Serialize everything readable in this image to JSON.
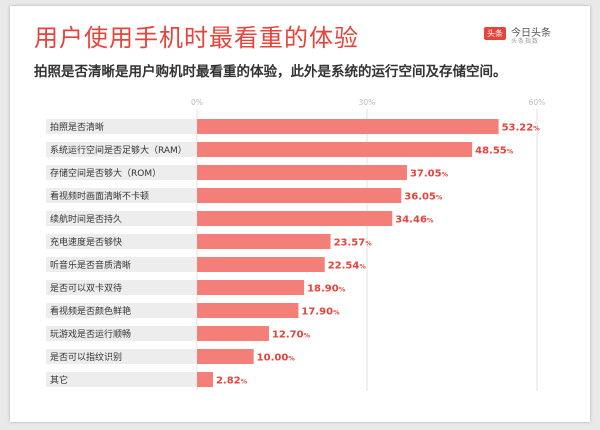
{
  "header": {
    "title": "用户使用手机时最看重的体验",
    "subtitle": "拍照是否清晰是用户购机时最看重的体验，此外是系统的运行空间及存储空间。"
  },
  "logo": {
    "badge": "头条",
    "name": "今日头条",
    "sub": "头条指数"
  },
  "colors": {
    "accent": "#e8433a",
    "bar": "#f47f78",
    "label_bg": "#ededed"
  },
  "chart_data": {
    "type": "bar",
    "orientation": "horizontal",
    "categories": [
      "拍照是否清晰",
      "系统运行空间是否足够大（RAM）",
      "存储空间是否够大（ROM）",
      "看视频时画面清晰不卡顿",
      "续航时间是否持久",
      "充电速度是否够快",
      "听音乐是否音质清晰",
      "是否可以双卡双待",
      "看视频是否颜色鲜艳",
      "玩游戏是否运行顺畅",
      "是否可以指纹识别",
      "其它"
    ],
    "values": [
      53.22,
      48.55,
      37.05,
      36.05,
      34.46,
      23.57,
      22.54,
      18.9,
      17.9,
      12.7,
      10.0,
      2.82
    ],
    "value_labels": [
      "53.22",
      "48.55",
      "37.05",
      "36.05",
      "34.46",
      "23.57",
      "22.54",
      "18.90",
      "17.90",
      "12.70",
      "10.00",
      "2.82"
    ],
    "unit": "%",
    "xlim": [
      0,
      60
    ],
    "ticks": [
      {
        "value": 0,
        "label": "0%"
      },
      {
        "value": 30,
        "label": "30%"
      },
      {
        "value": 60,
        "label": "60%"
      }
    ],
    "grid": true,
    "legend": "none"
  }
}
